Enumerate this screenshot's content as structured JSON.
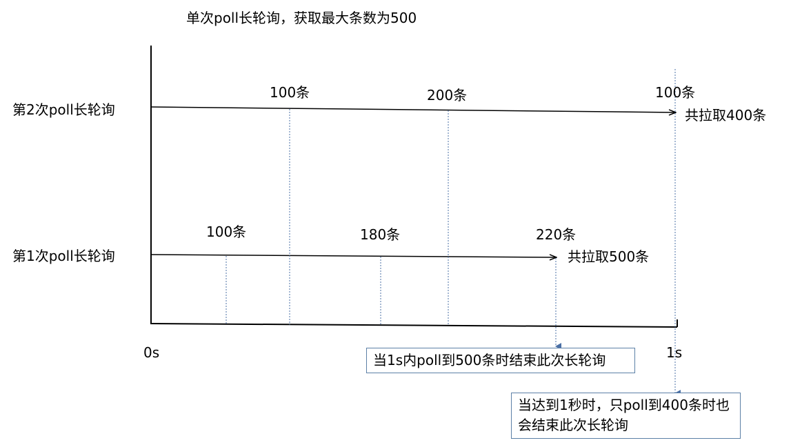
{
  "title": "单次poll长轮询，获取最大条数为500",
  "axis": {
    "start_label": "0s",
    "end_label": "1s"
  },
  "rows": [
    {
      "label": "第2次poll长轮询",
      "segments": [
        "100条",
        "200条",
        "100条"
      ],
      "total": "共拉取400条"
    },
    {
      "label": "第1次poll长轮询",
      "segments": [
        "100条",
        "180条",
        "220条"
      ],
      "total": "共拉取500条"
    }
  ],
  "notes": [
    "当1s内poll到500条时结束此次长轮询",
    "当达到1秒时，只poll到400条时也会结束此次长轮询"
  ],
  "colors": {
    "line": "#000000",
    "dotted": "#4a6fa5",
    "box_border": "#5b7fa6"
  }
}
